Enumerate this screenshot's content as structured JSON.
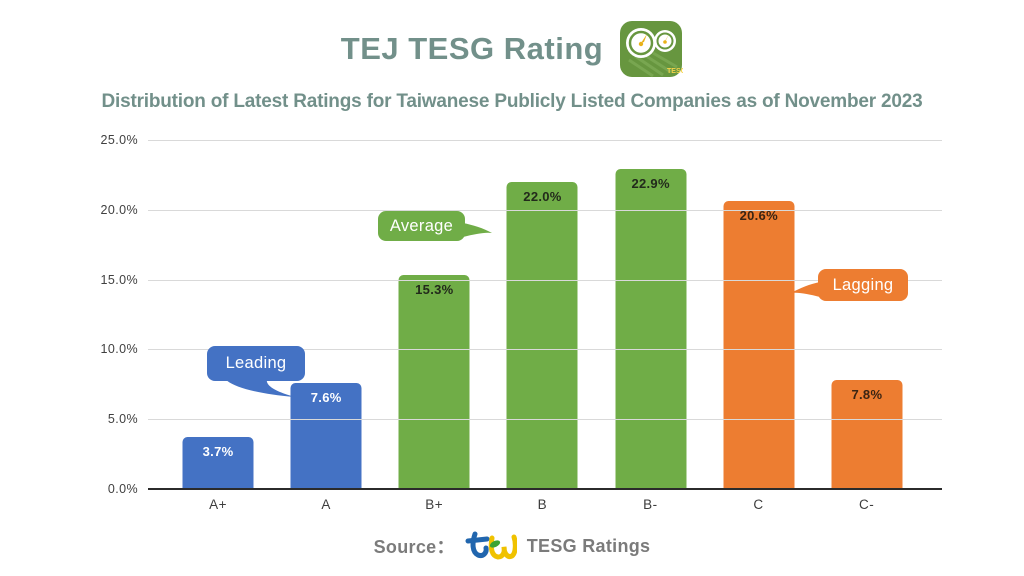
{
  "header": {
    "title": "TEJ TESG Rating",
    "subtitle": "Distribution of Latest Ratings for Taiwanese Publicly Listed Companies as of November 2023",
    "title_color": "#72908A",
    "app_icon": "tesg-gauge-app-icon"
  },
  "chart_data": {
    "type": "bar",
    "title": "Distribution of Latest Ratings for Taiwanese Publicly Listed Companies as of November 2023",
    "categories": [
      "A+",
      "A",
      "B+",
      "B",
      "B-",
      "C",
      "C-"
    ],
    "values": [
      3.7,
      7.6,
      15.3,
      22.0,
      22.9,
      20.6,
      7.8
    ],
    "value_labels": [
      "3.7%",
      "7.6%",
      "15.3%",
      "22.0%",
      "22.9%",
      "20.6%",
      "7.8%"
    ],
    "groups": [
      "leading",
      "leading",
      "average",
      "average",
      "average",
      "lagging",
      "lagging"
    ],
    "group_colors": {
      "leading": "#4472C4",
      "average": "#70AD47",
      "lagging": "#ED7D31"
    },
    "bar_label_colors": {
      "leading": "#FFFFFF",
      "average": "#222A1B",
      "lagging": "#3A2413"
    },
    "ylim": [
      0,
      25
    ],
    "ytick_step": 5,
    "ytick_labels": [
      "0.0%",
      "5.0%",
      "10.0%",
      "15.0%",
      "20.0%",
      "25.0%"
    ],
    "grid": true,
    "legend": "none",
    "annotations": [
      {
        "text": "Leading",
        "color": "#4472C4",
        "points_to": "A",
        "tail": "down-right"
      },
      {
        "text": "Average",
        "color": "#70AD47",
        "points_to": "B",
        "tail": "right"
      },
      {
        "text": "Lagging",
        "color": "#ED7D31",
        "points_to": "C",
        "tail": "left"
      }
    ]
  },
  "footer": {
    "source_label": "Source：",
    "brand_text": "TESG Ratings",
    "logo": "tej-logo"
  }
}
